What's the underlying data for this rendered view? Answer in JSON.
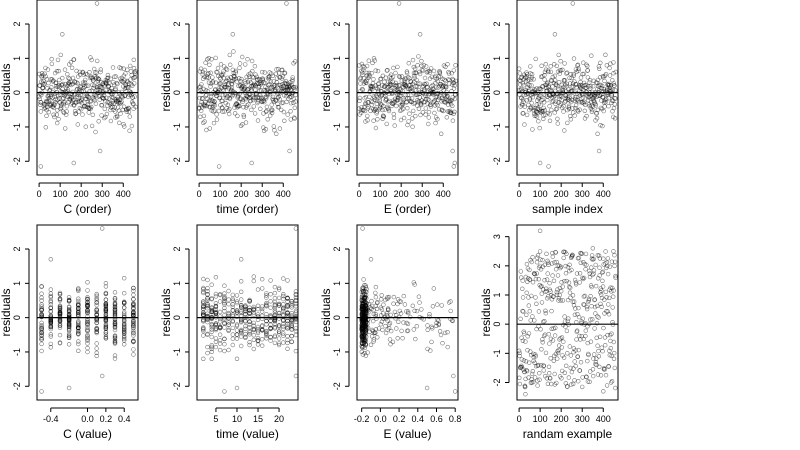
{
  "chart_data": [
    {
      "type": "scatter",
      "id": "c-order",
      "xlabel": "C (order)",
      "ylabel": "residuals",
      "xlim": [
        -10,
        470
      ],
      "ylim": [
        -2.4,
        2.7
      ],
      "xticks": [
        0,
        100,
        200,
        300,
        400
      ],
      "yticks": [
        -2,
        -1,
        0,
        1,
        2
      ],
      "hline": 0,
      "pattern": "index",
      "n": 460,
      "seed": 11,
      "outliers": [
        [
          8,
          -2.15
        ],
        [
          110,
          1.7
        ],
        [
          165,
          -2.05
        ],
        [
          275,
          2.6
        ],
        [
          290,
          -1.7
        ]
      ]
    },
    {
      "type": "scatter",
      "id": "time-order",
      "xlabel": "time (order)",
      "ylabel": "residuals",
      "xlim": [
        -10,
        470
      ],
      "ylim": [
        -2.4,
        2.7
      ],
      "xticks": [
        0,
        100,
        200,
        300,
        400
      ],
      "yticks": [
        -2,
        -1,
        0,
        1,
        2
      ],
      "hline": 0,
      "pattern": "index",
      "n": 460,
      "seed": 23,
      "outliers": [
        [
          95,
          -2.15
        ],
        [
          160,
          1.7
        ],
        [
          250,
          -2.05
        ],
        [
          415,
          2.6
        ],
        [
          430,
          -1.7
        ]
      ]
    },
    {
      "type": "scatter",
      "id": "e-order",
      "xlabel": "E (order)",
      "ylabel": "residuals",
      "xlim": [
        -10,
        470
      ],
      "ylim": [
        -2.4,
        2.7
      ],
      "xticks": [
        0,
        100,
        200,
        300,
        400
      ],
      "yticks": [
        -2,
        -1,
        0,
        1,
        2
      ],
      "hline": 0,
      "pattern": "index",
      "n": 460,
      "seed": 37,
      "outliers": [
        [
          190,
          2.6
        ],
        [
          290,
          1.7
        ],
        [
          445,
          -1.7
        ],
        [
          455,
          -2.05
        ],
        [
          450,
          -2.15
        ]
      ]
    },
    {
      "type": "scatter",
      "id": "sample-index",
      "xlabel": "sample index",
      "ylabel": "residuals",
      "xlim": [
        -10,
        470
      ],
      "ylim": [
        -2.4,
        2.7
      ],
      "xticks": [
        0,
        100,
        200,
        300,
        400
      ],
      "yticks": [
        -2,
        -1,
        0,
        1,
        2
      ],
      "hline": 0,
      "pattern": "index",
      "n": 460,
      "seed": 41,
      "outliers": [
        [
          100,
          -2.05
        ],
        [
          140,
          -2.15
        ],
        [
          170,
          1.7
        ],
        [
          255,
          2.6
        ],
        [
          380,
          -1.7
        ]
      ]
    },
    {
      "type": "scatter",
      "id": "c-value",
      "xlabel": "C (value)",
      "ylabel": "residuals",
      "xlim": [
        -0.55,
        0.55
      ],
      "ylim": [
        -2.4,
        2.7
      ],
      "xticks": [
        -0.4,
        0,
        0.2,
        0.4
      ],
      "xtick_labels": [
        "-0.4",
        "0.0",
        "0.2",
        "0.4"
      ],
      "yticks": [
        -2,
        -1,
        0,
        1,
        2
      ],
      "hline": 0,
      "pattern": "levels",
      "n": 460,
      "seed": 53,
      "levels": [
        -0.5,
        -0.4,
        -0.3,
        -0.2,
        -0.1,
        0.0,
        0.1,
        0.2,
        0.3,
        0.4,
        0.5
      ],
      "outliers": [
        [
          -0.5,
          -2.15
        ],
        [
          -0.4,
          1.7
        ],
        [
          -0.2,
          -2.05
        ],
        [
          0.16,
          2.6
        ],
        [
          0.16,
          -1.7
        ]
      ]
    },
    {
      "type": "scatter",
      "id": "time-value",
      "xlabel": "time (value)",
      "ylabel": "residuals",
      "xlim": [
        0.5,
        24.5
      ],
      "ylim": [
        -2.4,
        2.7
      ],
      "xticks": [
        5,
        10,
        15,
        20
      ],
      "xtick_labels": [
        "5",
        "10",
        "15",
        "20"
      ],
      "yticks": [
        -2,
        -1,
        0,
        1,
        2
      ],
      "hline": 0,
      "pattern": "levels",
      "n": 460,
      "seed": 67,
      "levels": [
        2,
        3,
        4,
        5,
        6,
        7,
        8,
        9,
        10,
        11,
        12,
        13,
        14,
        15,
        16,
        17,
        18,
        19,
        20,
        21,
        22,
        23,
        24
      ],
      "outliers": [
        [
          7,
          -2.15
        ],
        [
          11,
          1.7
        ],
        [
          10,
          -2.05
        ],
        [
          24,
          2.6
        ],
        [
          24,
          -1.7
        ]
      ]
    },
    {
      "type": "scatter",
      "id": "e-value",
      "xlabel": "E (value)",
      "ylabel": "residuals",
      "xlim": [
        -0.25,
        0.83
      ],
      "ylim": [
        -2.4,
        2.7
      ],
      "xticks": [
        -0.2,
        0,
        0.2,
        0.4,
        0.6,
        0.8
      ],
      "xtick_labels": [
        "-0.2",
        "0.0",
        "0.2",
        "0.4",
        "0.6",
        "0.8"
      ],
      "yticks": [
        -2,
        -1,
        0,
        1,
        2
      ],
      "hline": 0,
      "pattern": "skewed",
      "n": 460,
      "seed": 79,
      "outliers": [
        [
          -0.19,
          2.6
        ],
        [
          -0.1,
          1.7
        ],
        [
          0.5,
          -2.05
        ],
        [
          0.78,
          -1.7
        ],
        [
          0.8,
          -2.15
        ]
      ]
    },
    {
      "type": "scatter",
      "id": "random-example",
      "xlabel": "randam example",
      "ylabel": "residuals",
      "xlim": [
        -10,
        470
      ],
      "ylim": [
        -2.6,
        3.4
      ],
      "xticks": [
        0,
        100,
        200,
        300,
        400
      ],
      "yticks": [
        -2,
        -1,
        0,
        1,
        2,
        3
      ],
      "hline": 0,
      "pattern": "uniform",
      "n": 460,
      "seed": 97,
      "outliers": [
        [
          100,
          3.2
        ],
        [
          30,
          -2.4
        ],
        [
          400,
          -2.3
        ],
        [
          350,
          2.6
        ]
      ]
    }
  ]
}
